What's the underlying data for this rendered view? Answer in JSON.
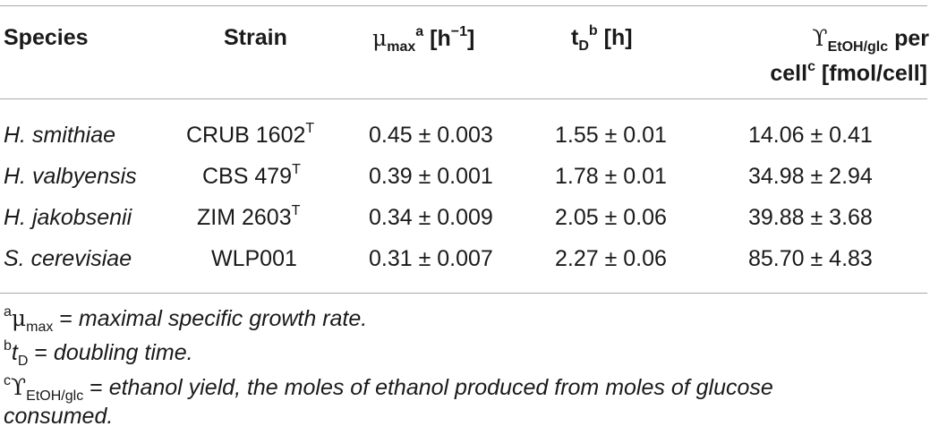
{
  "header": {
    "species": "Species",
    "strain": "Strain",
    "mu_symbol": "μ",
    "mu_sub": "max",
    "mu_sup": "a",
    "mu_unit_open": " [h",
    "mu_unit_exp": "−1",
    "mu_unit_close": "]",
    "td_main": "t",
    "td_sub": "D",
    "td_sup": "b",
    "td_unit": " [h]",
    "yield_symbol": "ϒ",
    "yield_sub": "EtOH/glc",
    "yield_tail": " per",
    "yield_line2_a": "cell",
    "yield_line2_sup": "c",
    "yield_line2_b": " [fmol/cell]"
  },
  "rows": [
    {
      "species": "H. smithiae",
      "strain": "CRUB 1602",
      "strain_sup": "T",
      "mu": "0.45 ± 0.003",
      "td": "1.55 ± 0.01",
      "yield": "14.06 ± 0.41"
    },
    {
      "species": "H. valbyensis",
      "strain": "CBS 479",
      "strain_sup": "T",
      "mu": "0.39 ± 0.001",
      "td": "1.78 ± 0.01",
      "yield": "34.98 ± 2.94"
    },
    {
      "species": "H. jakobsenii",
      "strain": "ZIM 2603",
      "strain_sup": "T",
      "mu": "0.34 ± 0.009",
      "td": "2.05 ± 0.06",
      "yield": "39.88 ± 3.68"
    },
    {
      "species": "S. cerevisiae",
      "strain": "WLP001",
      "strain_sup": "",
      "mu": "0.31 ± 0.007",
      "td": "2.27 ± 0.06",
      "yield": "85.70 ± 4.83"
    }
  ],
  "footnotes": {
    "a_mark": "a",
    "a_sym": "μ",
    "a_sub": "max",
    "a_eq": " = ",
    "a_text": "maximal specific growth rate.",
    "b_mark": "b",
    "b_sym": "t",
    "b_sub": "D",
    "b_eq": " = ",
    "b_text": "doubling time.",
    "c_mark": "c",
    "c_sym": "ϒ",
    "c_sub": "EtOH/glc",
    "c_eq": " = ",
    "c_text_line1": "ethanol yield, the moles of ethanol produced from moles of glucose",
    "c_text_line2": "consumed."
  }
}
